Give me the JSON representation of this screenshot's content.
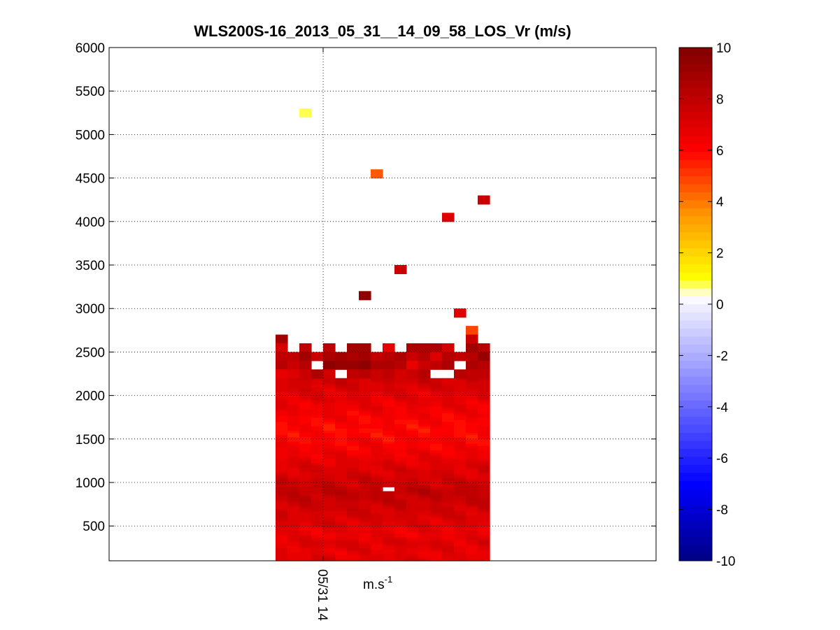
{
  "chart_data": {
    "type": "heatmap",
    "title": "WLS200S-16_2013_05_31__14_09_58_LOS_Vr (m/s)",
    "xlabel": "m.s",
    "xlabel_sup": "-1",
    "x_tick_labels": [
      "05/31 14"
    ],
    "ylim": [
      100,
      6000
    ],
    "y_ticks": [
      500,
      1000,
      1500,
      2000,
      2500,
      3000,
      3500,
      4000,
      4500,
      5000,
      5500,
      6000
    ],
    "grid": true,
    "columns": 18,
    "column_width": 0.0694,
    "column_starts": [
      0.0,
      0.0694,
      0.1389,
      0.2083,
      0.2778,
      0.3472,
      0.4167,
      0.4861,
      0.5556,
      0.625,
      0.6944,
      0.7639,
      0.8333,
      0.9028,
      0.9722,
      1.0417,
      1.1111,
      1.1806
    ],
    "x_range": [
      -0.9722,
      2.2222
    ],
    "x_tick_at": 0.2778,
    "colorbar": {
      "range": [
        -10,
        10
      ],
      "ticks": [
        -10,
        -8,
        -6,
        -4,
        -2,
        0,
        2,
        4,
        6,
        8,
        10
      ],
      "levels": 64,
      "colormap": "blue-white-yellow-red-darkred"
    },
    "body_top": 2200,
    "body_bottom": 100,
    "body_profile": [
      [
        100,
        7.0
      ],
      [
        200,
        6.7
      ],
      [
        300,
        7.1
      ],
      [
        400,
        6.6
      ],
      [
        500,
        6.9
      ],
      [
        600,
        7.2
      ],
      [
        700,
        7.4
      ],
      [
        800,
        7.7
      ],
      [
        900,
        8.0
      ],
      [
        1000,
        7.5
      ],
      [
        1100,
        7.2
      ],
      [
        1200,
        7.0
      ],
      [
        1300,
        6.6
      ],
      [
        1400,
        6.3
      ],
      [
        1500,
        6.1
      ],
      [
        1600,
        6.0
      ],
      [
        1700,
        6.1
      ],
      [
        1800,
        6.4
      ],
      [
        1900,
        6.6
      ],
      [
        2000,
        6.9
      ],
      [
        2100,
        7.2
      ],
      [
        2200,
        7.5
      ]
    ],
    "holes": [
      [
        9,
        900,
        50
      ]
    ],
    "upper_cells": [
      [
        0,
        2650,
        100,
        8.8
      ],
      [
        0,
        2550,
        100,
        7.4
      ],
      [
        0,
        2450,
        100,
        8.0
      ],
      [
        0,
        2350,
        100,
        8.2
      ],
      [
        0,
        2250,
        100,
        6.8
      ],
      [
        1,
        2450,
        100,
        8.0
      ],
      [
        1,
        2350,
        100,
        7.6
      ],
      [
        1,
        2250,
        100,
        7.0
      ],
      [
        2,
        2550,
        100,
        8.0
      ],
      [
        2,
        2450,
        100,
        8.8
      ],
      [
        2,
        2350,
        100,
        8.3
      ],
      [
        2,
        2250,
        100,
        7.6
      ],
      [
        3,
        2450,
        100,
        7.8
      ],
      [
        3,
        2250,
        100,
        8.5
      ],
      [
        4,
        2550,
        100,
        8.1
      ],
      [
        4,
        2450,
        100,
        8.6
      ],
      [
        4,
        2350,
        100,
        9.6
      ],
      [
        4,
        2250,
        100,
        7.4
      ],
      [
        5,
        2450,
        100,
        8.8
      ],
      [
        5,
        2350,
        100,
        9.3
      ],
      [
        6,
        2550,
        100,
        9.0
      ],
      [
        6,
        2450,
        100,
        8.5
      ],
      [
        6,
        2350,
        100,
        9.2
      ],
      [
        6,
        2250,
        100,
        8.0
      ],
      [
        7,
        2550,
        100,
        8.8
      ],
      [
        7,
        2450,
        100,
        8.9
      ],
      [
        7,
        2350,
        100,
        9.4
      ],
      [
        7,
        2250,
        100,
        8.4
      ],
      [
        8,
        2450,
        100,
        8.1
      ],
      [
        8,
        2350,
        100,
        8.5
      ],
      [
        8,
        2250,
        100,
        7.6
      ],
      [
        9,
        2550,
        100,
        6.8
      ],
      [
        9,
        2450,
        100,
        8.3
      ],
      [
        9,
        2350,
        100,
        8.6
      ],
      [
        9,
        2250,
        100,
        7.9
      ],
      [
        10,
        2450,
        100,
        8.7
      ],
      [
        10,
        2350,
        100,
        8.3
      ],
      [
        10,
        2250,
        100,
        7.4
      ],
      [
        11,
        2550,
        100,
        8.5
      ],
      [
        11,
        2450,
        100,
        7.7
      ],
      [
        11,
        2350,
        100,
        6.8
      ],
      [
        11,
        2250,
        100,
        7.6
      ],
      [
        12,
        2550,
        100,
        8.6
      ],
      [
        12,
        2450,
        100,
        8.2
      ],
      [
        12,
        2350,
        100,
        7.6
      ],
      [
        12,
        2250,
        100,
        8.3
      ],
      [
        13,
        2550,
        100,
        8.6
      ],
      [
        13,
        2450,
        100,
        6.9
      ],
      [
        13,
        2350,
        100,
        7.9
      ],
      [
        14,
        2550,
        100,
        7.2
      ],
      [
        14,
        2450,
        100,
        8.3
      ],
      [
        14,
        2350,
        100,
        8.6
      ],
      [
        15,
        2450,
        100,
        7.9
      ],
      [
        15,
        2250,
        100,
        8.4
      ],
      [
        16,
        2750,
        100,
        4.9
      ],
      [
        16,
        2650,
        100,
        7.6
      ],
      [
        16,
        2550,
        100,
        9.0
      ],
      [
        16,
        2450,
        100,
        8.4
      ],
      [
        16,
        2350,
        100,
        8.6
      ],
      [
        16,
        2250,
        100,
        7.9
      ],
      [
        17,
        2550,
        100,
        8.3
      ],
      [
        17,
        2450,
        100,
        9.2
      ],
      [
        17,
        2350,
        100,
        8.3
      ],
      [
        17,
        2250,
        100,
        8.0
      ]
    ],
    "scattered_cells": [
      [
        2,
        5250,
        100,
        0.8
      ],
      [
        7,
        3150,
        100,
        9.6
      ],
      [
        8,
        4550,
        100,
        4.6
      ],
      [
        10,
        3450,
        100,
        7.8
      ],
      [
        14,
        4050,
        100,
        7.0
      ],
      [
        15,
        2950,
        100,
        6.9
      ],
      [
        17,
        4250,
        100,
        7.8
      ]
    ]
  }
}
